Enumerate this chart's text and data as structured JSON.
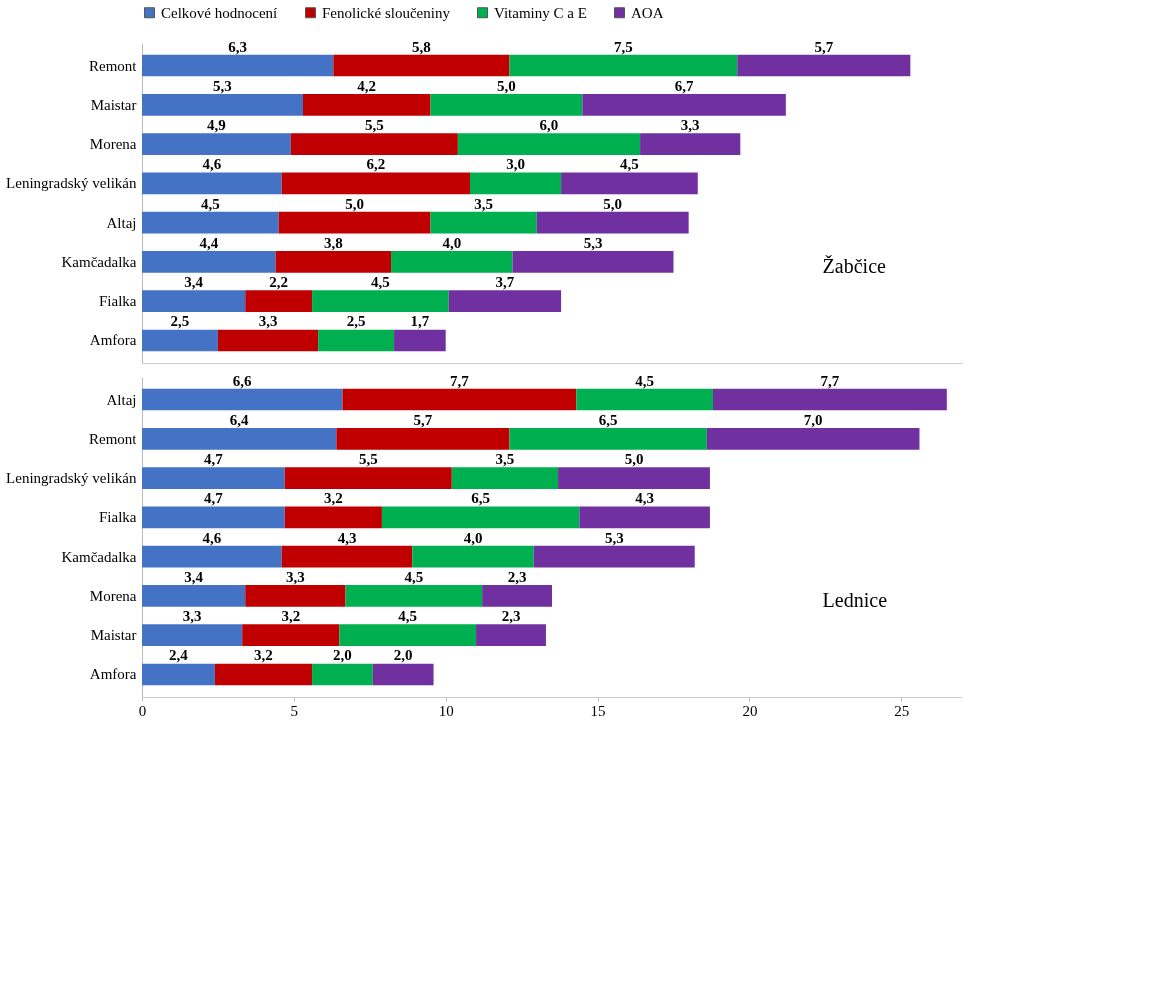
{
  "chart_data": [
    {
      "type": "bar",
      "orientation": "horizontal",
      "stacked": true,
      "legend": "top",
      "grid": false,
      "tick_labels": "y",
      "xlim": [
        0,
        27
      ],
      "categories": [
        "Remont",
        "Maistar",
        "Morena",
        "Leningradský velikán",
        "Altaj",
        "Kamčadalka",
        "Fialka",
        "Amfora"
      ],
      "annotations": [
        "Žabčice"
      ],
      "series": [
        {
          "name": "Celkové hodnocení",
          "color": "#4472c4",
          "values": [
            6.3,
            5.3,
            4.9,
            4.6,
            4.5,
            4.4,
            3.4,
            2.5
          ],
          "value_labels": [
            "6,3",
            "5,3",
            "4,9",
            "4,6",
            "4,5",
            "4,4",
            "3,4",
            "2,5"
          ]
        },
        {
          "name": "Fenolické sloučeniny",
          "color": "#c00000",
          "values": [
            5.8,
            4.2,
            5.5,
            6.2,
            5.0,
            3.8,
            2.2,
            3.3
          ],
          "value_labels": [
            "5,8",
            "4,2",
            "5,5",
            "6,2",
            "5,0",
            "3,8",
            "2,2",
            "3,3"
          ]
        },
        {
          "name": "Vitaminy C a E",
          "color": "#00b050",
          "values": [
            7.5,
            5.0,
            6.0,
            3.0,
            3.5,
            4.0,
            4.5,
            2.5
          ],
          "value_labels": [
            "7,5",
            "5,0",
            "6,0",
            "3,0",
            "3,5",
            "4,0",
            "4,5",
            "2,5"
          ]
        },
        {
          "name": "AOA",
          "color": "#7030a0",
          "values": [
            5.7,
            6.7,
            3.3,
            4.5,
            5.0,
            5.3,
            3.7,
            1.7
          ],
          "value_labels": [
            "5,7",
            "6,7",
            "3,3",
            "4,5",
            "5,0",
            "5,3",
            "3,7",
            "1,7"
          ]
        }
      ]
    },
    {
      "type": "bar",
      "orientation": "horizontal",
      "stacked": true,
      "legend": false,
      "grid": false,
      "xlim": [
        0,
        27
      ],
      "xticks": [
        0,
        5,
        10,
        15,
        20,
        25
      ],
      "categories": [
        "Altaj",
        "Remont",
        "Leningradský velikán",
        "Fialka",
        "Kamčadalka",
        "Morena",
        "Maistar",
        "Amfora"
      ],
      "annotations": [
        "Lednice"
      ],
      "series": [
        {
          "name": "Celkové hodnocení",
          "color": "#4472c4",
          "values": [
            6.6,
            6.4,
            4.7,
            4.7,
            4.6,
            3.4,
            3.3,
            2.4
          ],
          "value_labels": [
            "6,6",
            "6,4",
            "4,7",
            "4,7",
            "4,6",
            "3,4",
            "3,3",
            "2,4"
          ]
        },
        {
          "name": "Fenolické sloučeniny",
          "color": "#c00000",
          "values": [
            7.7,
            5.7,
            5.5,
            3.2,
            4.3,
            3.3,
            3.2,
            3.2
          ],
          "value_labels": [
            "7,7",
            "5,7",
            "5,5",
            "3,2",
            "4,3",
            "3,3",
            "3,2",
            "3,2"
          ]
        },
        {
          "name": "Vitaminy C a E",
          "color": "#00b050",
          "values": [
            4.5,
            6.5,
            3.5,
            6.5,
            4.0,
            4.5,
            4.5,
            2.0
          ],
          "value_labels": [
            "4,5",
            "6,5",
            "3,5",
            "6,5",
            "4,0",
            "4,5",
            "4,5",
            "2,0"
          ]
        },
        {
          "name": "AOA",
          "color": "#7030a0",
          "values": [
            7.7,
            7.0,
            5.0,
            4.3,
            5.3,
            2.3,
            2.3,
            2.0
          ],
          "value_labels": [
            "7,7",
            "7,0",
            "5,0",
            "4,3",
            "5,3",
            "2,3",
            "2,3",
            "2,0"
          ]
        }
      ]
    }
  ]
}
